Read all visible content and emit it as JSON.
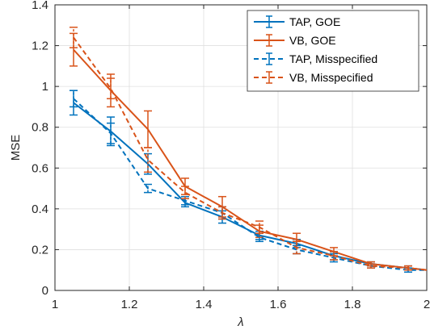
{
  "chart_data": {
    "type": "line",
    "xlabel": "λ",
    "ylabel": "MSE",
    "xlim": [
      1,
      2
    ],
    "ylim": [
      0,
      1.4
    ],
    "x_ticks": [
      1,
      1.2,
      1.4,
      1.6,
      1.8,
      2
    ],
    "x_tick_labels": [
      "1",
      "1.2",
      "1.4",
      "1.6",
      "1.8",
      "2"
    ],
    "y_ticks": [
      0,
      0.2,
      0.4,
      0.6,
      0.8,
      1,
      1.2,
      1.4
    ],
    "y_tick_labels": [
      "0",
      "0.2",
      "0.4",
      "0.6",
      "0.8",
      "1",
      "1.2",
      "1.4"
    ],
    "grid": true,
    "legend_position": "top-right",
    "error_bars": true,
    "x": [
      1.05,
      1.15,
      1.25,
      1.35,
      1.45,
      1.55,
      1.65,
      1.75,
      1.85,
      1.95,
      2.0
    ],
    "series": [
      {
        "name": "TAP, GOE",
        "color": "#0072BD",
        "dashed": false,
        "values": [
          0.92,
          0.78,
          0.62,
          0.43,
          0.36,
          0.27,
          0.23,
          0.17,
          0.13,
          0.11,
          0.1
        ],
        "errors": [
          0.06,
          0.07,
          0.05,
          0.02,
          0.03,
          0.02,
          0.02,
          0.02,
          0.01,
          0.01,
          0.0
        ]
      },
      {
        "name": "VB, GOE",
        "color": "#D95319",
        "dashed": false,
        "values": [
          1.18,
          0.98,
          0.79,
          0.51,
          0.41,
          0.29,
          0.25,
          0.19,
          0.13,
          0.11,
          0.1
        ],
        "errors": [
          0.08,
          0.08,
          0.09,
          0.04,
          0.05,
          0.03,
          0.03,
          0.02,
          0.01,
          0.01,
          0.0
        ]
      },
      {
        "name": "TAP, Misspecified",
        "color": "#0072BD",
        "dashed": true,
        "values": [
          0.94,
          0.77,
          0.5,
          0.44,
          0.38,
          0.26,
          0.2,
          0.16,
          0.12,
          0.1,
          0.1
        ],
        "errors": [
          0.04,
          0.05,
          0.02,
          0.02,
          0.03,
          0.02,
          0.02,
          0.02,
          0.01,
          0.01,
          0.0
        ]
      },
      {
        "name": "VB, Misspecified",
        "color": "#D95319",
        "dashed": true,
        "values": [
          1.24,
          0.99,
          0.64,
          0.48,
          0.38,
          0.31,
          0.21,
          0.17,
          0.12,
          0.11,
          0.1
        ],
        "errors": [
          0.05,
          0.05,
          0.06,
          0.03,
          0.03,
          0.03,
          0.03,
          0.02,
          0.01,
          0.01,
          0.0
        ]
      }
    ]
  }
}
